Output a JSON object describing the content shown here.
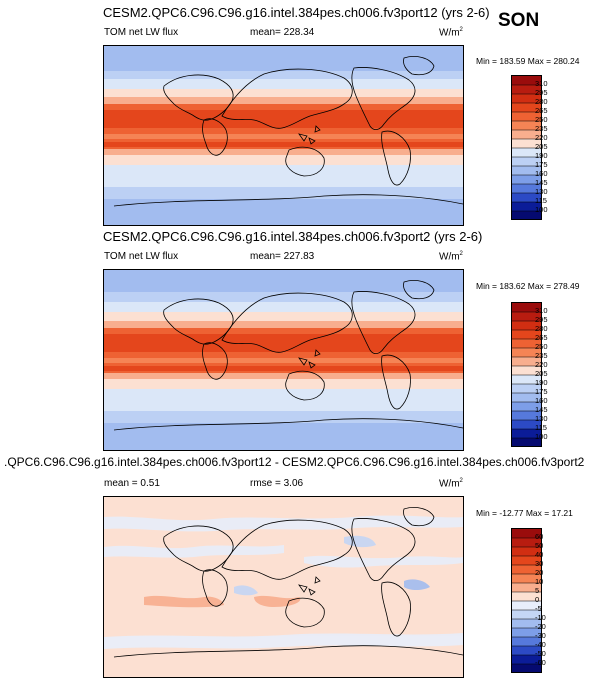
{
  "season": "SON",
  "panels": [
    {
      "title": "CESM2.QPC6.C96.C96.g16.intel.384pes.ch006.fv3port12 (yrs 2-6)",
      "variable": "TOM net LW flux",
      "stat": "mean= 228.34",
      "units": "W/m",
      "units_sup": "2",
      "minmax": "Min = 183.59 Max = 280.24",
      "colorbar_labels": [
        "310",
        "295",
        "280",
        "265",
        "250",
        "235",
        "220",
        "205",
        "190",
        "175",
        "160",
        "145",
        "130",
        "115",
        "100"
      ]
    },
    {
      "title": "CESM2.QPC6.C96.C96.g16.intel.384pes.ch006.fv3port2 (yrs 2-6)",
      "variable": "TOM net LW flux",
      "stat": "mean= 227.83",
      "units": "W/m",
      "units_sup": "2",
      "minmax": "Min = 183.62 Max = 278.49",
      "colorbar_labels": [
        "310",
        "295",
        "280",
        "265",
        "250",
        "235",
        "220",
        "205",
        "190",
        "175",
        "160",
        "145",
        "130",
        "115",
        "100"
      ]
    },
    {
      "title": ".QPC6.C96.C96.g16.intel.384pes.ch006.fv3port12 - CESM2.QPC6.C96.C96.g16.intel.384pes.ch006.fv3port2",
      "mean_stat": "mean =   0.51",
      "rmse_stat": "rmse =   3.06",
      "units": "W/m",
      "units_sup": "2",
      "minmax": "Min = -12.77 Max = 17.21",
      "colorbar_labels": [
        "60",
        "50",
        "40",
        "30",
        "20",
        "10",
        "5",
        "0",
        "-5",
        "-10",
        "-20",
        "-30",
        "-40",
        "-50",
        "-60"
      ]
    }
  ],
  "colors": {
    "abs_scale": [
      "#9a0c0c",
      "#b81c10",
      "#d12e12",
      "#e4461c",
      "#ee6233",
      "#f58455",
      "#f8ae8e",
      "#fce0d2",
      "#dbe7f8",
      "#bcd0f4",
      "#a2bcef",
      "#7d9ee8",
      "#5679dc",
      "#2c4ac5",
      "#0b1c98",
      "#050a70"
    ],
    "diff_scale": [
      "#9a0c0c",
      "#b81c10",
      "#d12e12",
      "#e4461c",
      "#ee6233",
      "#f58455",
      "#f8ae8e",
      "#fce0d2",
      "#e8eefb",
      "#c4d6f5",
      "#a2bcef",
      "#7d9ee8",
      "#5679dc",
      "#2c4ac5",
      "#0b1c98",
      "#050a70"
    ]
  }
}
